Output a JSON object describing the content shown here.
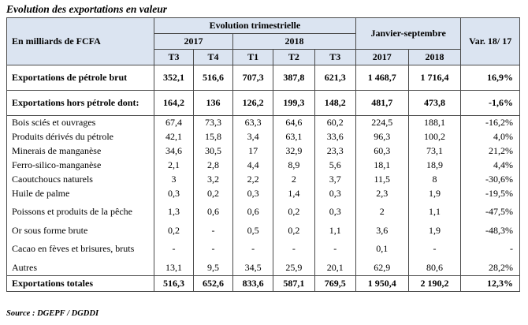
{
  "caption": "Evolution des exportations en valeur",
  "header": {
    "unit_label": "En milliards de FCFA",
    "group_quarterly": "Evolution trimestrielle",
    "group_ytd": "Janvier-septembre",
    "variation": "Var. 18/ 17",
    "year_2017": "2017",
    "year_2018": "2018",
    "cols": [
      "T3",
      "T4",
      "T1",
      "T2",
      "T3",
      "2017",
      "2018"
    ]
  },
  "rows": [
    {
      "label": "Exportations de pétrole brut",
      "values": [
        "352,1",
        "516,6",
        "707,3",
        "387,8",
        "621,3",
        "1 468,7",
        "1 716,4",
        "16,9%"
      ]
    },
    {
      "label": "Exportations hors pétrole dont:",
      "values": [
        "164,2",
        "136",
        "126,2",
        "199,3",
        "148,2",
        "481,7",
        "473,8",
        "-1,6%"
      ]
    },
    {
      "label": "Bois sciés et ouvrages",
      "values": [
        "67,4",
        "73,3",
        "63,3",
        "64,6",
        "60,2",
        "224,5",
        "188,1",
        "-16,2%"
      ]
    },
    {
      "label": "Produits dérivés du pétrole",
      "values": [
        "42,1",
        "15,8",
        "3,4",
        "63,1",
        "33,6",
        "96,3",
        "100,2",
        "4,0%"
      ]
    },
    {
      "label": "Minerais de manganèse",
      "values": [
        "34,6",
        "30,5",
        "17",
        "32,9",
        "23,3",
        "60,3",
        "73,1",
        "21,2%"
      ]
    },
    {
      "label": "Ferro-silico-manganèse",
      "values": [
        "2,1",
        "2,8",
        "4,4",
        "8,9",
        "5,6",
        "18,1",
        "18,9",
        "4,4%"
      ]
    },
    {
      "label": "Caoutchoucs naturels",
      "values": [
        "3",
        "3,2",
        "2,2",
        "2",
        "3,7",
        "11,5",
        "8",
        "-30,6%"
      ]
    },
    {
      "label": "Huile de palme",
      "values": [
        "0,3",
        "0,2",
        "0,3",
        "1,4",
        "0,3",
        "2,3",
        "1,9",
        "-19,5%"
      ]
    },
    {
      "label": "Poissons et produits de la pêche",
      "values": [
        "1,3",
        "0,6",
        "0,6",
        "0,2",
        "0,3",
        "2",
        "1,1",
        "-47,5%"
      ]
    },
    {
      "label": "Or sous forme brute",
      "values": [
        "0,2",
        "-",
        "0,5",
        "0,2",
        "1,1",
        "3,6",
        "1,9",
        "-48,3%"
      ]
    },
    {
      "label": "Cacao en fèves et brisures, bruts",
      "values": [
        "-",
        "-",
        "-",
        "-",
        "-",
        "0,1",
        "-",
        "-"
      ]
    },
    {
      "label": "Autres",
      "values": [
        "13,1",
        "9,5",
        "34,5",
        "25,9",
        "20,1",
        "62,9",
        "80,6",
        "28,2%"
      ]
    },
    {
      "label": "Exportations totales",
      "values": [
        "516,3",
        "652,6",
        "833,6",
        "587,1",
        "769,5",
        "1 950,4",
        "2 190,2",
        "12,3%"
      ]
    }
  ],
  "source": "Source : DGEPF / DGDDI"
}
